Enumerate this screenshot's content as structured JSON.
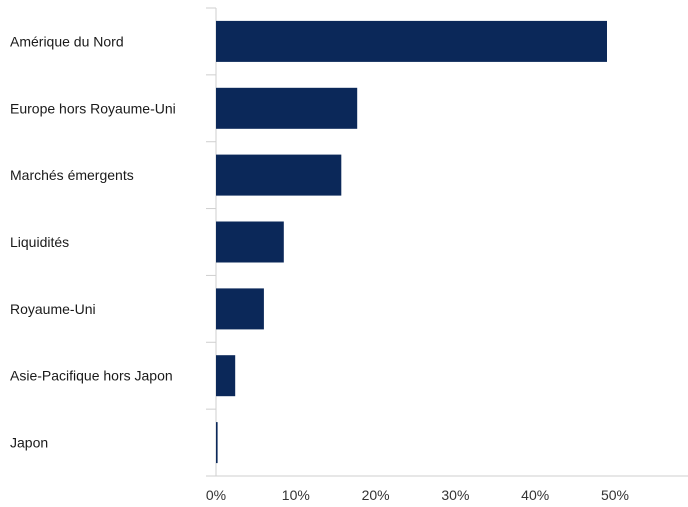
{
  "chart_data": {
    "type": "bar",
    "orientation": "horizontal",
    "categories": [
      "Amérique du Nord",
      "Europe hors Royaume-Uni",
      "Marchés émergents",
      "Liquidités",
      "Royaume-Uni",
      "Asie-Pacifique hors Japon",
      "Japon"
    ],
    "values": [
      49.0,
      17.7,
      15.7,
      8.5,
      6.0,
      2.4,
      0.2
    ],
    "xlim": [
      0,
      59
    ],
    "x_ticks": [
      "0%",
      "10%",
      "20%",
      "30%",
      "40%",
      "50%"
    ],
    "x_tick_values": [
      0,
      10,
      20,
      30,
      40,
      50
    ],
    "bar_color": "#0b2859",
    "axis_color": "#cfcfcf",
    "grid": false,
    "legend": "none",
    "title": "",
    "xlabel": "",
    "ylabel": ""
  }
}
